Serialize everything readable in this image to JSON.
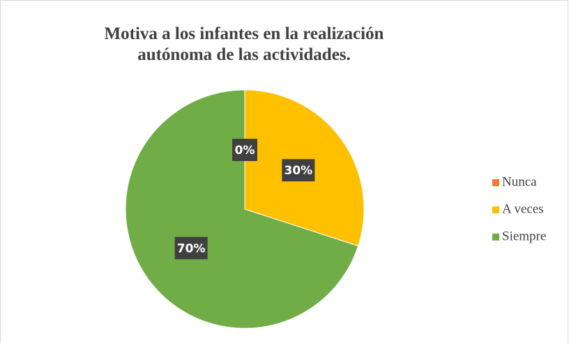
{
  "chart_data": {
    "type": "pie",
    "title": "Motiva a los infantes en la realización autónoma de las actividades.",
    "categories": [
      "Nunca",
      "A veces",
      "Siempre"
    ],
    "values": [
      0,
      30,
      70
    ],
    "value_labels": [
      "0%",
      "30%",
      "70%"
    ],
    "colors": [
      "#ed7d31",
      "#ffc000",
      "#70ad47"
    ],
    "legend": "right"
  }
}
